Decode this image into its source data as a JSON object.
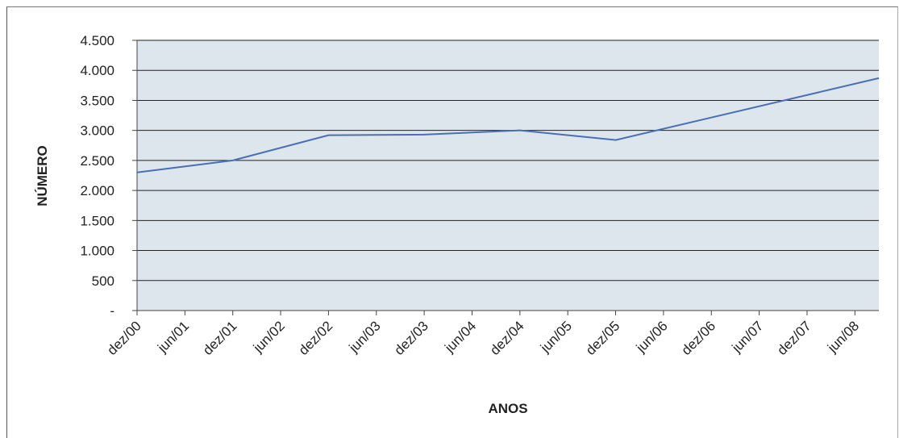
{
  "chart_data": {
    "type": "line",
    "title": "",
    "xlabel": "ANOS",
    "ylabel": "NÚMERO",
    "categories": [
      "dez/00",
      "jun/01",
      "dez/01",
      "jun/02",
      "dez/02",
      "jun/03",
      "dez/03",
      "jun/04",
      "dez/04",
      "jun/05",
      "dez/05",
      "jun/06",
      "dez/06",
      "jun/07",
      "dez/07",
      "jun/08"
    ],
    "y_tick_labels": [
      "-",
      "500",
      "1.000",
      "1.500",
      "2.000",
      "2.500",
      "3.000",
      "3.500",
      "4.000",
      "4.500"
    ],
    "y_ticks": [
      0,
      500,
      1000,
      1500,
      2000,
      2500,
      3000,
      3500,
      4000,
      4500
    ],
    "ylim": [
      0,
      4500
    ],
    "series": [
      {
        "x": [
          0,
          2,
          4,
          6,
          8,
          10,
          15.5
        ],
        "values": [
          2300,
          2500,
          2920,
          2930,
          3000,
          2840,
          3870
        ]
      }
    ],
    "grid": true,
    "legend": "none",
    "colors": {
      "line": "#4a6fb5",
      "plot_bg": "#dde6ec",
      "grid": "#222222"
    }
  }
}
